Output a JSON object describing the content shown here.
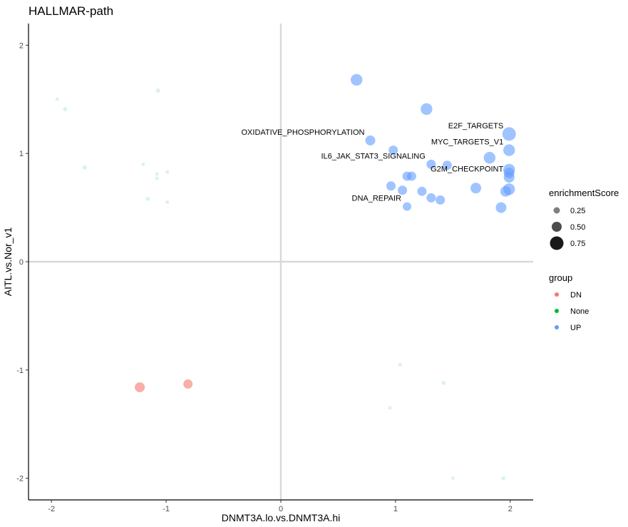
{
  "chart_data": {
    "type": "scatter",
    "title": "HALLMAR-path",
    "xlabel": "DNMT3A.lo.vs.DNMT3A.hi",
    "ylabel": "AITL.vs.Nor_v1",
    "xlim": [
      -2.2,
      2.2
    ],
    "ylim": [
      -2.2,
      2.2
    ],
    "x_ticks": [
      -2,
      -1,
      0,
      1,
      2
    ],
    "y_ticks": [
      -2,
      -1,
      0,
      1,
      2
    ],
    "x_tick_labels": [
      "-2",
      "-1",
      "0",
      "1",
      "2"
    ],
    "y_tick_labels": [
      "-2",
      "-1",
      "0",
      "1",
      "2"
    ],
    "reference_lines": {
      "x": 0,
      "y": 0
    },
    "grid": false,
    "colors": {
      "DN": "#f8766d",
      "None": "#00ba38",
      "UP": "#619cff"
    },
    "legend": {
      "position": "right",
      "size_title": "enrichmentScore",
      "size_entries": [
        {
          "label": "0.25",
          "value": 0.25
        },
        {
          "label": "0.50",
          "value": 0.5
        },
        {
          "label": "0.75",
          "value": 0.75
        }
      ],
      "color_title": "group",
      "color_entries": [
        "DN",
        "None",
        "UP"
      ]
    },
    "points": [
      {
        "x": -1.95,
        "y": 1.5,
        "score": 0.05,
        "group": "None"
      },
      {
        "x": -1.88,
        "y": 1.41,
        "score": 0.1,
        "group": "None"
      },
      {
        "x": -1.07,
        "y": 1.58,
        "score": 0.1,
        "group": "None"
      },
      {
        "x": -1.71,
        "y": 0.87,
        "score": 0.1,
        "group": "None"
      },
      {
        "x": -1.2,
        "y": 0.9,
        "score": 0.05,
        "group": "None"
      },
      {
        "x": -1.08,
        "y": 0.81,
        "score": 0.05,
        "group": "None"
      },
      {
        "x": -1.08,
        "y": 0.77,
        "score": 0.05,
        "group": "None"
      },
      {
        "x": -0.99,
        "y": 0.83,
        "score": 0.05,
        "group": "None"
      },
      {
        "x": -1.16,
        "y": 0.58,
        "score": 0.08,
        "group": "None"
      },
      {
        "x": -0.99,
        "y": 0.55,
        "score": 0.05,
        "group": "None"
      },
      {
        "x": 1.04,
        "y": -0.95,
        "score": 0.05,
        "group": "None"
      },
      {
        "x": 1.42,
        "y": -1.12,
        "score": 0.08,
        "group": "None"
      },
      {
        "x": 0.95,
        "y": -1.35,
        "score": 0.05,
        "group": "None"
      },
      {
        "x": 1.5,
        "y": -2.0,
        "score": 0.05,
        "group": "None"
      },
      {
        "x": 1.94,
        "y": -2.0,
        "score": 0.08,
        "group": "None"
      },
      {
        "x": -1.23,
        "y": -1.16,
        "score": 0.5,
        "group": "DN"
      },
      {
        "x": -0.81,
        "y": -1.13,
        "score": 0.45,
        "group": "DN"
      },
      {
        "x": 0.66,
        "y": 1.68,
        "score": 0.62,
        "group": "UP"
      },
      {
        "x": 1.27,
        "y": 1.41,
        "score": 0.62,
        "group": "UP"
      },
      {
        "x": 1.99,
        "y": 1.18,
        "score": 0.75,
        "group": "UP",
        "label": "E2F_TARGETS"
      },
      {
        "x": 0.78,
        "y": 1.12,
        "score": 0.5,
        "group": "UP",
        "label": "OXIDATIVE_PHOSPHORYLATION"
      },
      {
        "x": 0.98,
        "y": 1.03,
        "score": 0.45,
        "group": "UP"
      },
      {
        "x": 1.99,
        "y": 1.03,
        "score": 0.62,
        "group": "UP",
        "label": "MYC_TARGETS_V1"
      },
      {
        "x": 1.82,
        "y": 0.96,
        "score": 0.62,
        "group": "UP"
      },
      {
        "x": 1.31,
        "y": 0.9,
        "score": 0.45,
        "group": "UP",
        "label": "IL6_JAK_STAT3_SIGNALING"
      },
      {
        "x": 1.45,
        "y": 0.89,
        "score": 0.45,
        "group": "UP"
      },
      {
        "x": 1.99,
        "y": 0.85,
        "score": 0.62,
        "group": "UP"
      },
      {
        "x": 1.99,
        "y": 0.82,
        "score": 0.55,
        "group": "UP"
      },
      {
        "x": 1.99,
        "y": 0.78,
        "score": 0.55,
        "group": "UP",
        "label": "G2M_CHECKPOINT"
      },
      {
        "x": 1.1,
        "y": 0.79,
        "score": 0.45,
        "group": "UP"
      },
      {
        "x": 1.14,
        "y": 0.79,
        "score": 0.45,
        "group": "UP"
      },
      {
        "x": 0.96,
        "y": 0.7,
        "score": 0.45,
        "group": "UP"
      },
      {
        "x": 1.7,
        "y": 0.68,
        "score": 0.55,
        "group": "UP"
      },
      {
        "x": 1.06,
        "y": 0.66,
        "score": 0.45,
        "group": "UP"
      },
      {
        "x": 1.23,
        "y": 0.65,
        "score": 0.45,
        "group": "UP"
      },
      {
        "x": 1.99,
        "y": 0.67,
        "score": 0.62,
        "group": "UP"
      },
      {
        "x": 1.96,
        "y": 0.65,
        "score": 0.55,
        "group": "UP"
      },
      {
        "x": 1.31,
        "y": 0.59,
        "score": 0.45,
        "group": "UP"
      },
      {
        "x": 1.39,
        "y": 0.57,
        "score": 0.45,
        "group": "UP"
      },
      {
        "x": 1.1,
        "y": 0.51,
        "score": 0.4,
        "group": "UP",
        "label": "DNA_REPAIR"
      },
      {
        "x": 1.92,
        "y": 0.5,
        "score": 0.55,
        "group": "UP"
      }
    ]
  }
}
